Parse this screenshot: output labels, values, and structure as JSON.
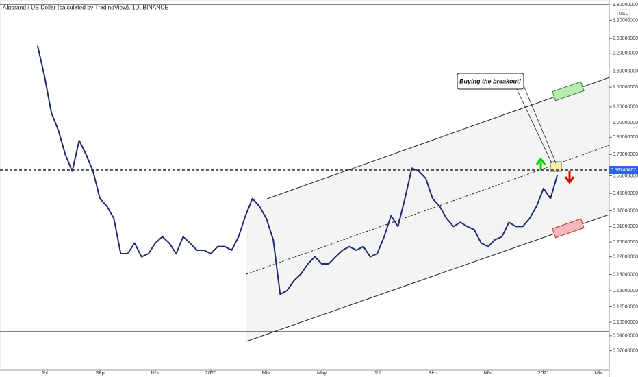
{
  "chart_data": {
    "type": "line",
    "title": "Algorand / US Dollar (calculated by TradingView), 1D, BINANCE",
    "currency": "USD",
    "annotation": "Buying the breakout!",
    "current_price": {
      "value": 0.58746467,
      "label": "0.58746467"
    },
    "levels": [
      3.8,
      0.094
    ],
    "log_scale": true,
    "color": "#1f2a6e",
    "categories": [
      null,
      null,
      "Jul",
      null,
      null,
      null,
      null,
      null,
      null,
      null,
      "Sep",
      null,
      null,
      null,
      null,
      null,
      null,
      null,
      "Nov",
      null,
      null,
      null,
      null,
      null,
      null,
      null,
      "2020",
      null,
      null,
      null,
      null,
      null,
      null,
      null,
      "Mar",
      null,
      null,
      null,
      null,
      null,
      null,
      null,
      "May",
      null,
      null,
      null,
      null,
      null,
      null,
      null,
      "Jul",
      null,
      null,
      null,
      null,
      null,
      null,
      null,
      "Sep",
      null,
      null,
      null,
      null,
      null,
      null,
      null,
      "Nov",
      null,
      null,
      null,
      null,
      null,
      null,
      null,
      "2021",
      null,
      null,
      null,
      null,
      null,
      null,
      null,
      "Mar"
    ],
    "values": [
      null,
      2.4,
      1.7,
      1.12,
      0.92,
      0.7,
      0.58,
      0.82,
      0.7,
      0.58,
      0.425,
      0.39,
      0.34,
      0.228,
      0.228,
      0.257,
      0.22,
      0.228,
      0.257,
      0.276,
      0.257,
      0.228,
      0.276,
      0.257,
      0.237,
      0.237,
      0.228,
      0.247,
      0.247,
      0.237,
      0.276,
      0.35,
      0.425,
      0.39,
      0.34,
      0.267,
      0.144,
      0.15,
      0.168,
      0.181,
      0.203,
      0.22,
      0.203,
      0.203,
      0.22,
      0.237,
      0.247,
      0.237,
      0.247,
      0.22,
      0.228,
      0.276,
      0.35,
      0.31,
      0.425,
      0.6,
      0.58,
      0.535,
      0.425,
      0.39,
      0.34,
      0.31,
      0.325,
      0.31,
      0.299,
      0.257,
      0.247,
      0.267,
      0.276,
      0.325,
      0.31,
      0.31,
      0.34,
      0.39,
      0.477,
      0.425,
      0.556,
      null,
      null,
      null,
      null,
      null,
      null
    ],
    "ylim": [
      0.061,
      4.02
    ],
    "yticks": [
      {
        "value": 3.8,
        "label": "3.80000000"
      },
      {
        "value": 3.2,
        "label": "3.20000000"
      },
      {
        "value": 2.6,
        "label": "2.60000000"
      },
      {
        "value": 2.2,
        "label": "2.20000000"
      },
      {
        "value": 1.8,
        "label": "1.80000000"
      },
      {
        "value": 1.5,
        "label": "1.50000000"
      },
      {
        "value": 1.2,
        "label": "1.20000000"
      },
      {
        "value": 1,
        "label": "1.00000000"
      },
      {
        "value": 0.85,
        "label": "0.85000000"
      },
      {
        "value": 0.7,
        "label": "0.70000000"
      },
      {
        "value": 0.55,
        "label": "0.55000000"
      },
      {
        "value": 0.45,
        "label": "0.45000000"
      },
      {
        "value": 0.37,
        "label": "0.37000000"
      },
      {
        "value": 0.31,
        "label": "0.31000000"
      },
      {
        "value": 0.26,
        "label": "0.26000000"
      },
      {
        "value": 0.22,
        "label": "0.22000000"
      },
      {
        "value": 0.18,
        "label": "0.18000000"
      },
      {
        "value": 0.15,
        "label": "0.15000000"
      },
      {
        "value": 0.125,
        "label": "0.12500000"
      },
      {
        "value": 0.105,
        "label": "0.10500000"
      },
      {
        "value": 0.09,
        "label": "0.09000000"
      },
      {
        "value": 0.076,
        "label": "0.07600000"
      }
    ]
  }
}
